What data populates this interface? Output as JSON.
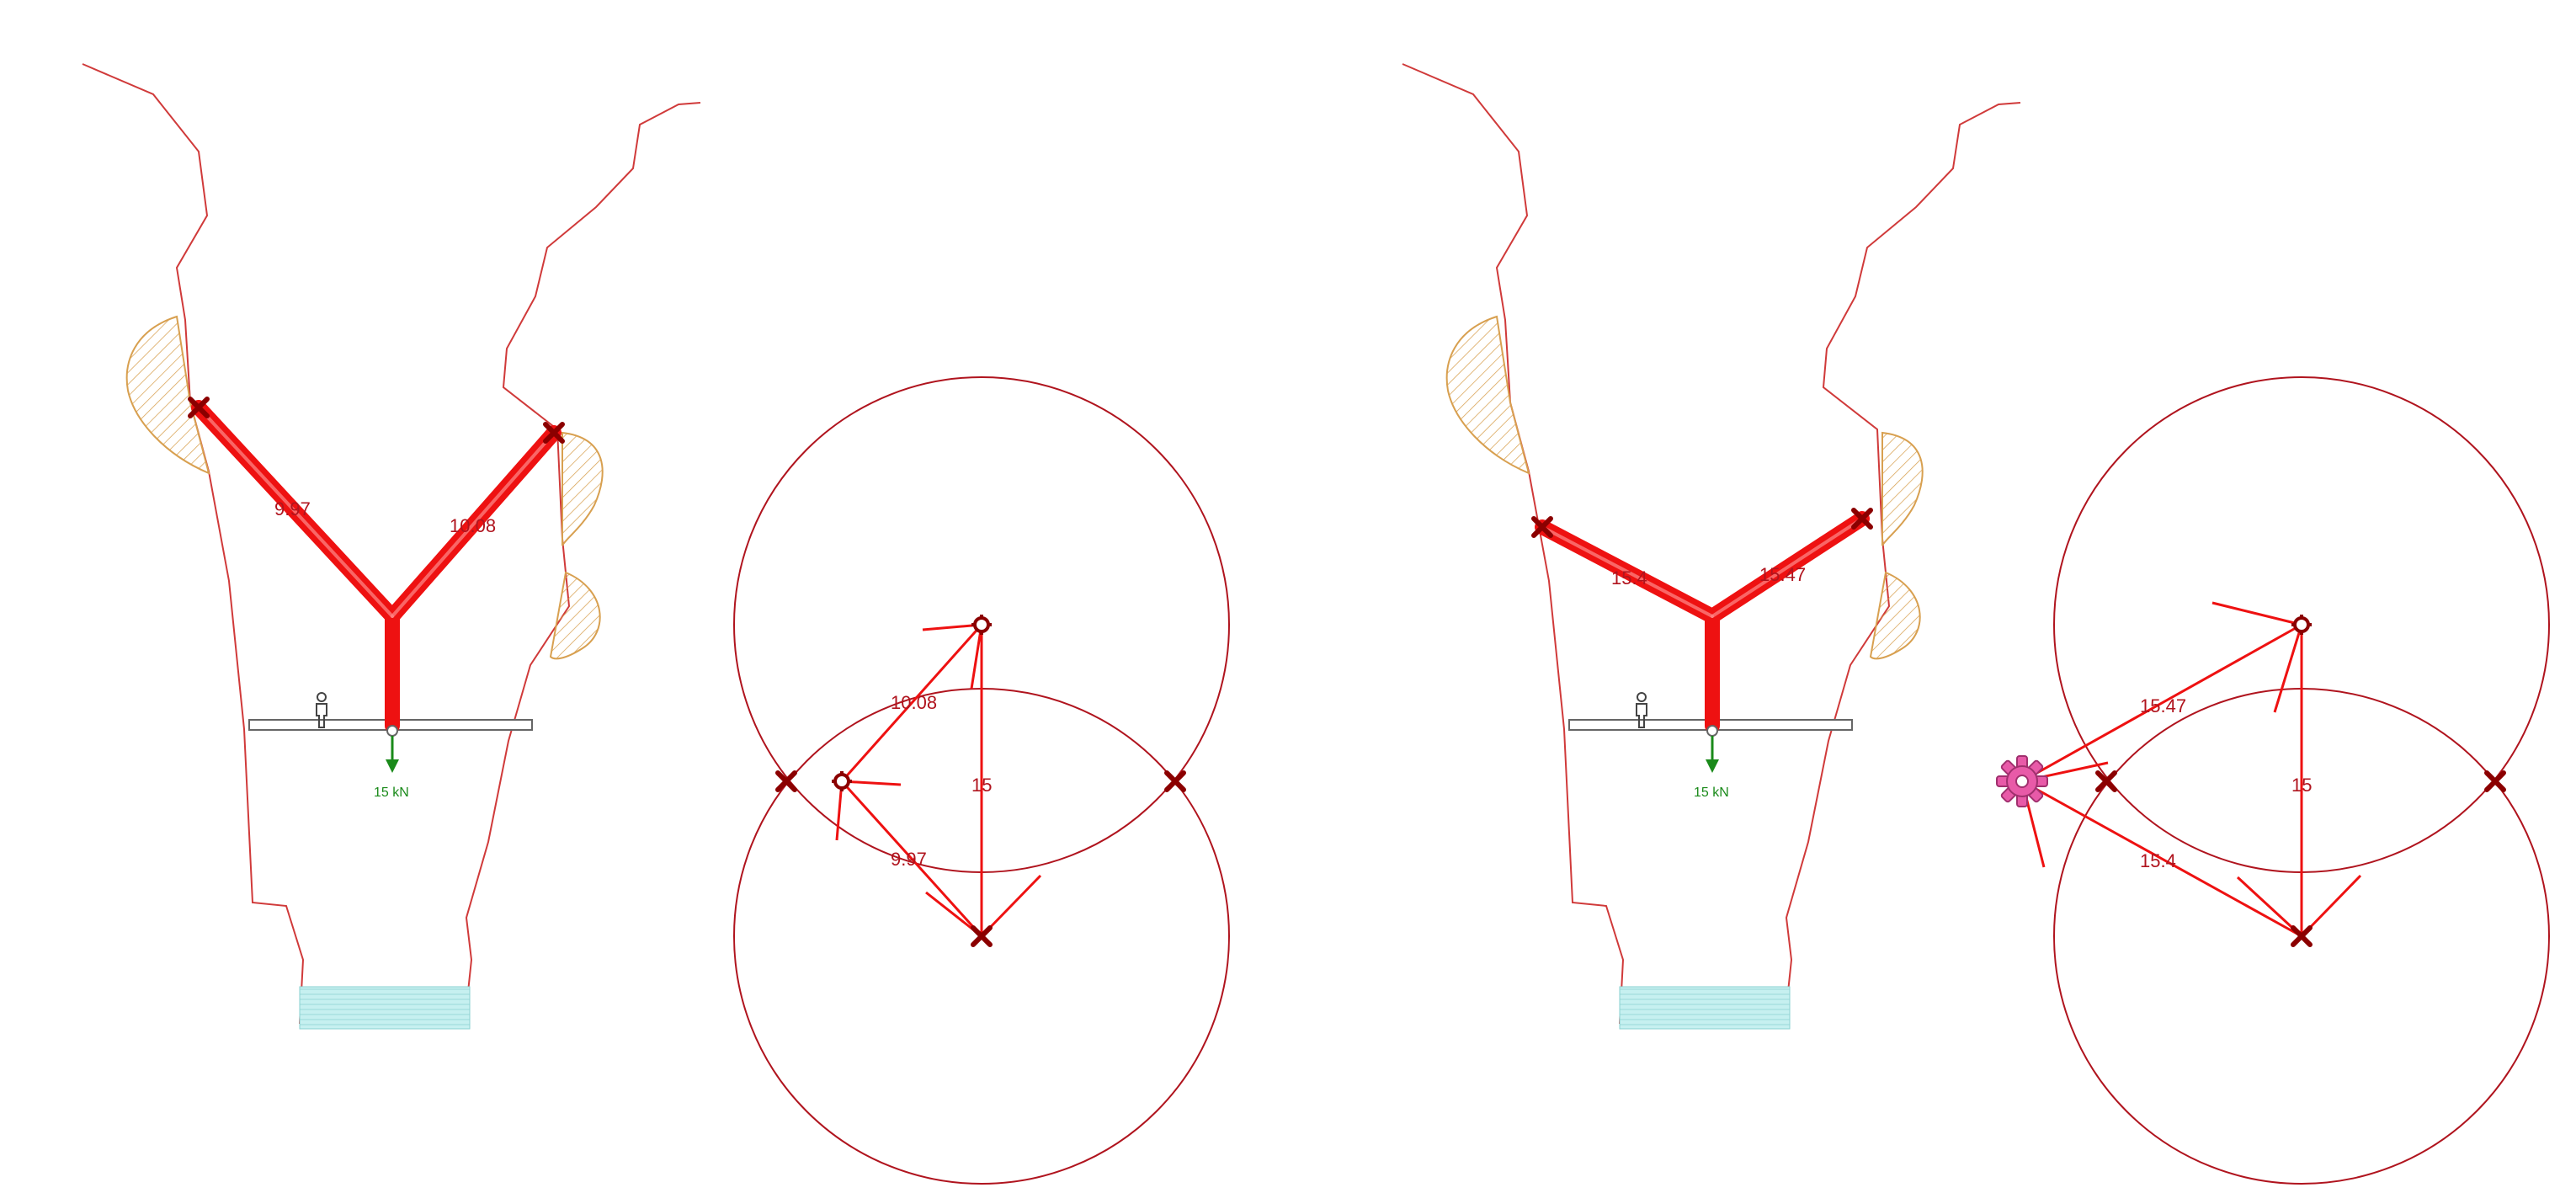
{
  "colors": {
    "rock_outline": "#d03a3a",
    "circle": "#b0141e",
    "member": "#ee1111",
    "anchor": "#8b0000",
    "hatch": "#d8a050",
    "load": "#1a8a1a",
    "water": "#bfeeee",
    "trouble_marker": "#e85aa8"
  },
  "panel_left": {
    "rope_labels": {
      "left": "9.97",
      "right": "10.08"
    },
    "load_label": "15 kN",
    "vector_labels": {
      "upper": "10.08",
      "lower": "9.97",
      "load": "15"
    }
  },
  "panel_right": {
    "rope_labels": {
      "left": "15.4",
      "right": "15.47"
    },
    "load_label": "15 kN",
    "vector_labels": {
      "upper": "15.47",
      "lower": "15.4",
      "load": "15"
    }
  },
  "icons": {
    "anchor": "cross-anchor-icon",
    "person": "person-silhouette-icon",
    "load_arrow": "arrow-down-icon",
    "problem": "gear-flower-warning-icon"
  }
}
